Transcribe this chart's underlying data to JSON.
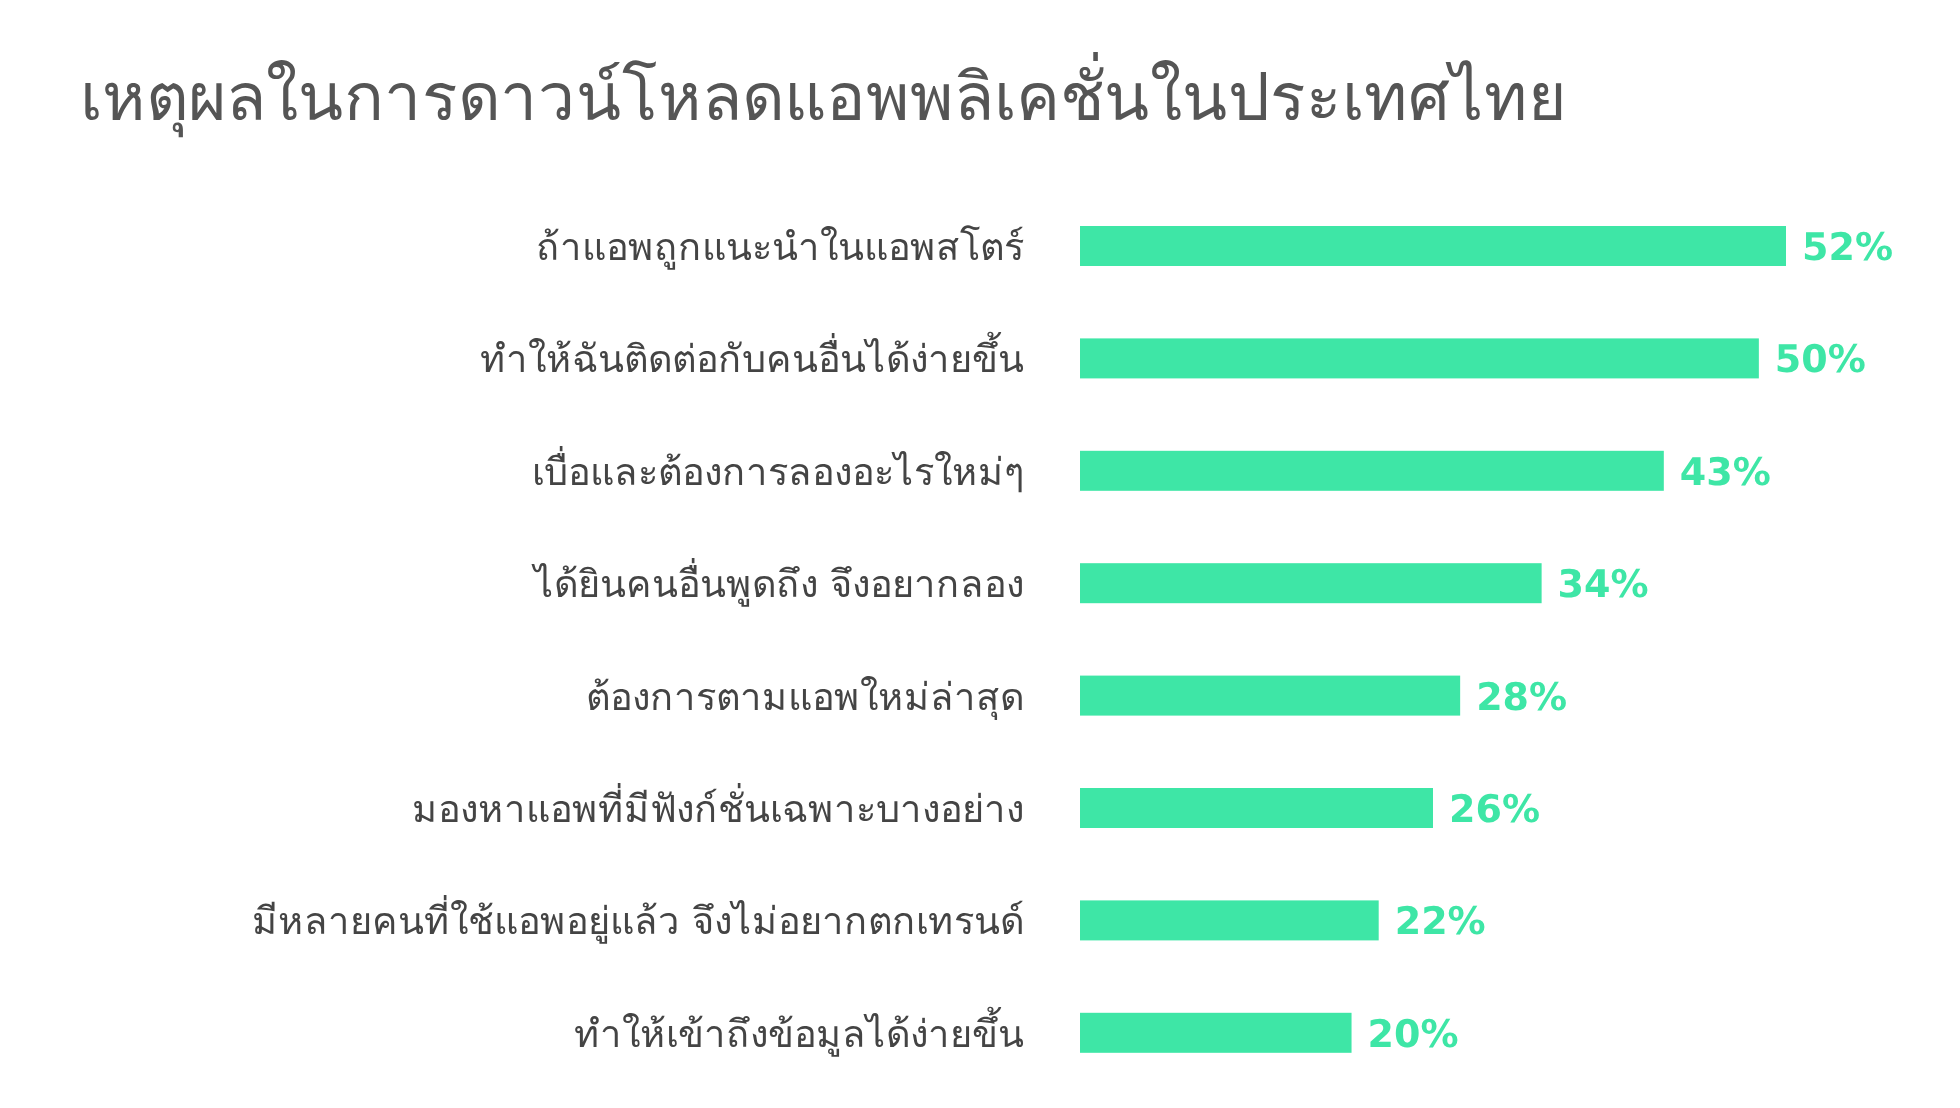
{
  "chart_data": {
    "type": "bar",
    "orientation": "horizontal",
    "title": "เหตุผลในการดาวน์โหลดแอพพลิเคชั่นในประเทศไทย",
    "categories": [
      "ถ้าแอพถูกแนะนำในแอพสโตร์",
      "ทำให้ฉันติดต่อกับคนอื่นได้ง่ายขึ้น",
      "เบื่อและต้องการลองอะไรใหม่ๆ",
      "ได้ยินคนอื่นพูดถึง จึงอยากลอง",
      "ต้องการตามแอพใหม่ล่าสุด",
      "มองหาแอพที่มีฟังก์ชั่นเฉพาะบางอย่าง",
      "มีหลายคนที่ใช้แอพอยู่แล้ว จึงไม่อยากตกเทรนด์",
      "ทำให้เข้าถึงข้อมูลได้ง่ายขึ้น"
    ],
    "values": [
      52,
      50,
      43,
      34,
      28,
      26,
      22,
      20
    ],
    "value_labels": [
      "52%",
      "50%",
      "43%",
      "34%",
      "28%",
      "26%",
      "22%",
      "20%"
    ],
    "color": "#3ee6a6"
  }
}
